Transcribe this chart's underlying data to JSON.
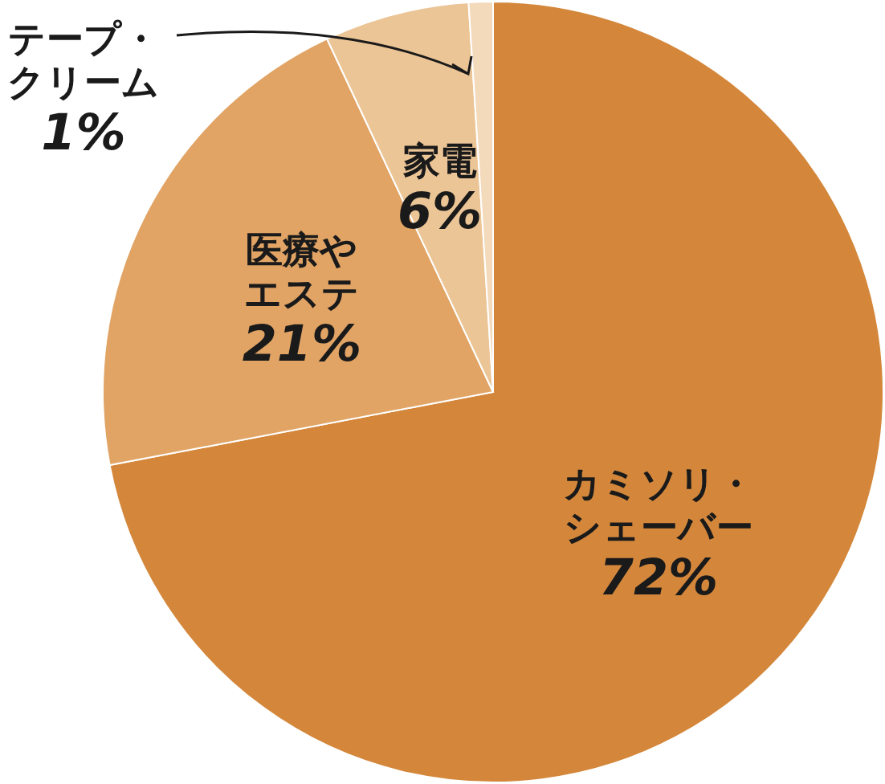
{
  "chart_data": {
    "type": "pie",
    "categories": [
      "カミソリ・シェーバー",
      "医療やエステ",
      "家電",
      "テープ・クリーム"
    ],
    "values": [
      72,
      21,
      6,
      1
    ],
    "value_labels": [
      "72%",
      "21%",
      "6%",
      "1%"
    ],
    "colors": [
      "#d4873b",
      "#e1a465",
      "#ecc596",
      "#f3dabb"
    ]
  }
}
